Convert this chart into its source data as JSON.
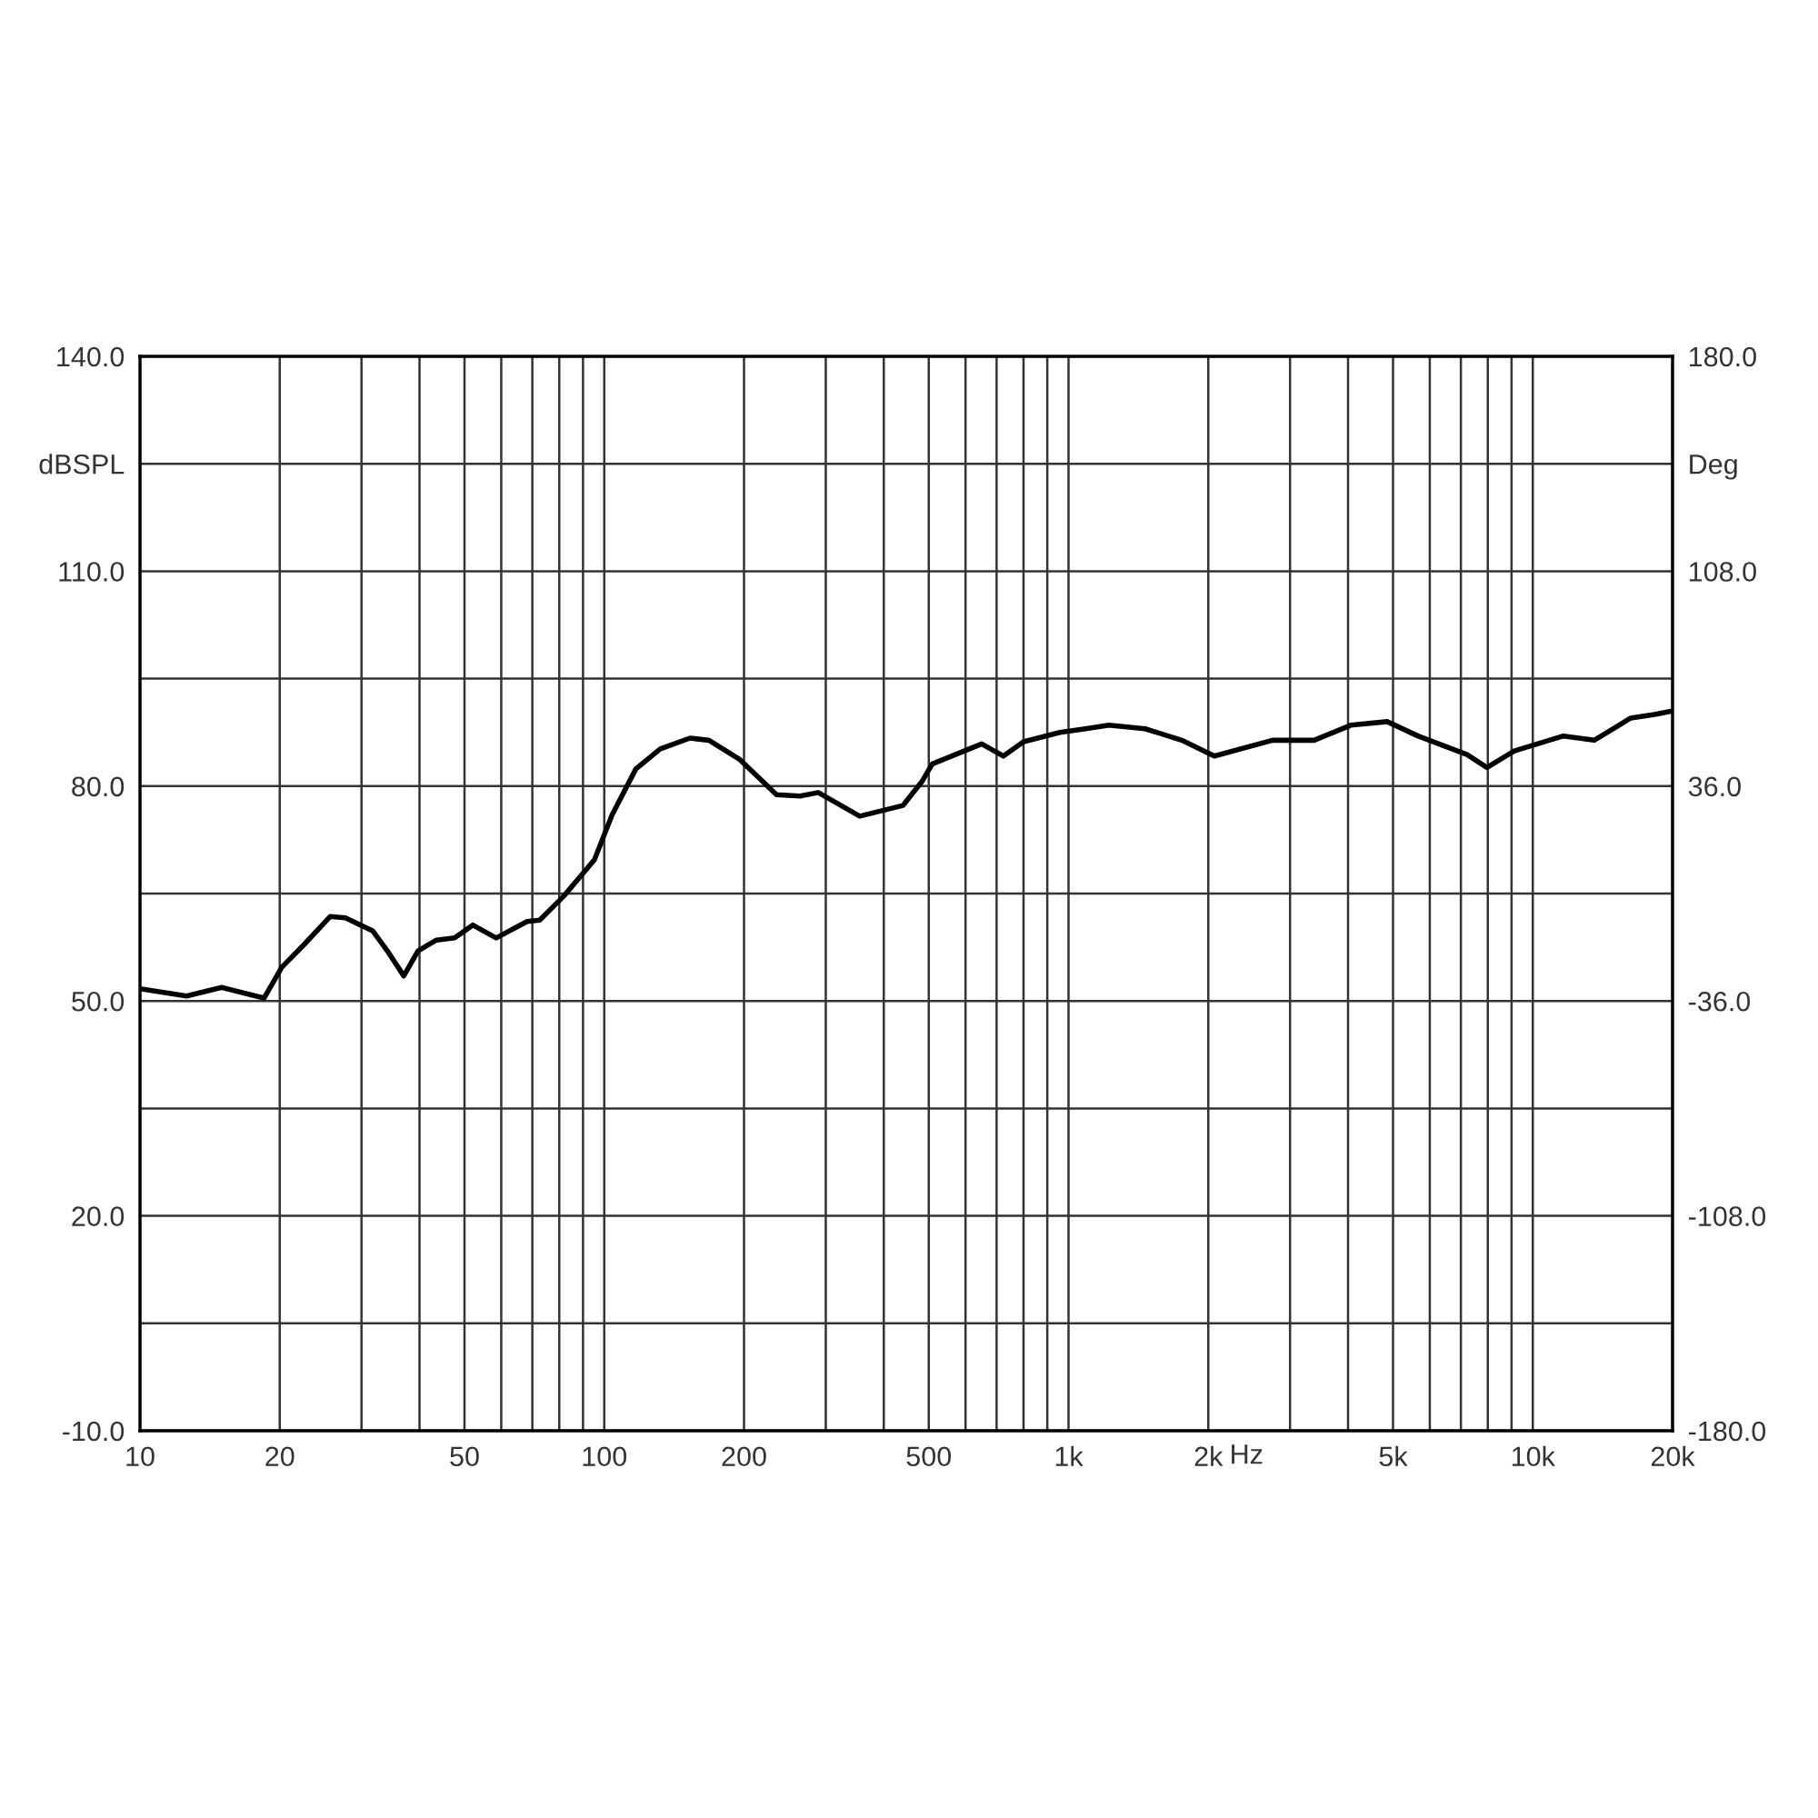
{
  "chart_data": {
    "type": "line",
    "xlabel": "Hz",
    "log": "x",
    "grid": true,
    "marker": "none",
    "line_style": "solid",
    "legend": false,
    "xlim": [
      10,
      20000
    ],
    "xticks": [
      {
        "value": 10,
        "label": "10"
      },
      {
        "value": 20,
        "label": "20"
      },
      {
        "value": 30,
        "label": null
      },
      {
        "value": 40,
        "label": null
      },
      {
        "value": 50,
        "label": "50"
      },
      {
        "value": 60,
        "label": null
      },
      {
        "value": 70,
        "label": null
      },
      {
        "value": 80,
        "label": null
      },
      {
        "value": 90,
        "label": null
      },
      {
        "value": 100,
        "label": "100"
      },
      {
        "value": 200,
        "label": "200"
      },
      {
        "value": 300,
        "label": null
      },
      {
        "value": 400,
        "label": null
      },
      {
        "value": 500,
        "label": "500"
      },
      {
        "value": 600,
        "label": null
      },
      {
        "value": 700,
        "label": null
      },
      {
        "value": 800,
        "label": null
      },
      {
        "value": 900,
        "label": null
      },
      {
        "value": 1000,
        "label": "1k"
      },
      {
        "value": 2000,
        "label": "2k"
      },
      {
        "value": 3000,
        "label": null
      },
      {
        "value": 4000,
        "label": null
      },
      {
        "value": 5000,
        "label": "5k"
      },
      {
        "value": 6000,
        "label": null
      },
      {
        "value": 7000,
        "label": null
      },
      {
        "value": 8000,
        "label": null
      },
      {
        "value": 9000,
        "label": null
      },
      {
        "value": 10000,
        "label": "10k"
      },
      {
        "value": 20000,
        "label": "20k"
      }
    ],
    "ylim": [
      -10,
      140
    ],
    "yticks": [
      {
        "value": -10,
        "label": "-10.0"
      },
      {
        "value": 5,
        "label": null
      },
      {
        "value": 20,
        "label": "20.0"
      },
      {
        "value": 35,
        "label": null
      },
      {
        "value": 50,
        "label": "50.0"
      },
      {
        "value": 65,
        "label": null
      },
      {
        "value": 80,
        "label": "80.0"
      },
      {
        "value": 95,
        "label": null
      },
      {
        "value": 110,
        "label": "110.0"
      },
      {
        "value": 125,
        "label": "dBSPL"
      },
      {
        "value": 140,
        "label": "140.0"
      }
    ],
    "y2lim": [
      -180,
      180
    ],
    "y2ticks": [
      {
        "value": -180,
        "label": "-180.0"
      },
      {
        "value": -108,
        "label": "-108.0"
      },
      {
        "value": -36,
        "label": "-36.0"
      },
      {
        "value": 36,
        "label": "36.0"
      },
      {
        "value": 108,
        "label": "108.0"
      },
      {
        "value": 144,
        "label": "Deg"
      },
      {
        "value": 180,
        "label": "180.0"
      }
    ],
    "series": [
      {
        "color": "#000000",
        "x": [
          10,
          12.6,
          15.0,
          18.5,
          20.2,
          22.5,
          25.7,
          27.7,
          31.7,
          34.1,
          37.0,
          39.7,
          43.5,
          47.6,
          52.1,
          58.5,
          68.2,
          72.6,
          81.7,
          95.2,
          104,
          117,
          132,
          153,
          168,
          196,
          235,
          264,
          289,
          355,
          440,
          483,
          509,
          650,
          724,
          800,
          958,
          1087,
          1222,
          1463,
          1753,
          2061,
          2750,
          3381,
          4053,
          4856,
          5656,
          7218,
          7966,
          9120,
          11640,
          13560,
          16250,
          18280,
          20000
        ],
        "values": [
          51.7,
          50.7,
          51.9,
          50.4,
          54.7,
          57.8,
          61.8,
          61.6,
          59.8,
          57.0,
          53.5,
          57.0,
          58.5,
          58.8,
          60.6,
          58.8,
          61.1,
          61.3,
          64.6,
          69.7,
          76.0,
          82.4,
          85.2,
          86.7,
          86.4,
          83.7,
          78.8,
          78.6,
          79.1,
          75.8,
          77.3,
          80.6,
          83.1,
          85.9,
          84.2,
          86.2,
          87.5,
          88.0,
          88.5,
          88.0,
          86.4,
          84.2,
          86.4,
          86.4,
          88.5,
          89.0,
          87.0,
          84.4,
          82.6,
          84.9,
          87.0,
          86.4,
          89.5,
          90.0,
          90.5
        ]
      }
    ]
  }
}
